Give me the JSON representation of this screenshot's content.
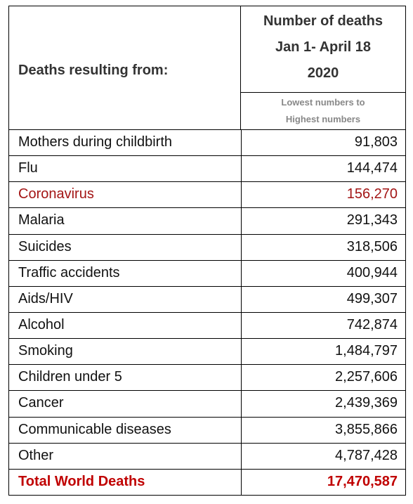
{
  "header": {
    "label": "Deaths resulting from:",
    "value_lines": [
      "Number of deaths",
      "Jan 1- April 18",
      "2020"
    ],
    "note_lines": [
      "Lowest numbers to",
      "Highest numbers"
    ]
  },
  "table": {
    "rows": [
      [
        "Mothers during childbirth",
        "91,803"
      ],
      [
        "Flu",
        "144,474"
      ],
      [
        "Coronavirus",
        "156,270"
      ],
      [
        "Malaria",
        "291,343"
      ],
      [
        "Suicides",
        "318,506"
      ],
      [
        "Traffic accidents",
        "400,944"
      ],
      [
        "Aids/HIV",
        "499,307"
      ],
      [
        "Alcohol",
        "742,874"
      ],
      [
        "Smoking",
        "1,484,797"
      ],
      [
        "Children under 5",
        "2,257,606"
      ],
      [
        "Cancer",
        "2,439,369"
      ],
      [
        "Communicable diseases",
        "3,855,866"
      ],
      [
        "Other",
        "4,787,428"
      ]
    ],
    "total": [
      "Total World Deaths",
      "17,470,587"
    ]
  }
}
